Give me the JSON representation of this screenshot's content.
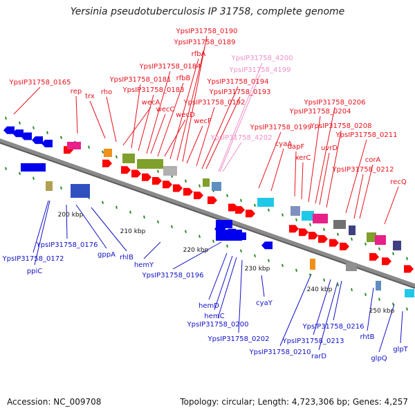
{
  "title": "Yersinia pseudotuberculosis IP 31758, complete genome",
  "footer": {
    "accession": "Accession: NC_009708",
    "topology": "Topology: circular; Length: 4,723,306 bp; Genes: 4,257"
  },
  "colors": {
    "forward_label": "#e8101a",
    "reverse_label": "#1010c8",
    "tentative_label": "#f08fc8",
    "backbone": "#8a8a8a",
    "forward_arrow": "#ff0000",
    "reverse_arrow": "#0000ee",
    "tick": "#2a8a2a"
  },
  "kbp_ticks": [
    "200 kbp",
    "210 kbp",
    "220 kbp",
    "230 kbp",
    "240 kbp",
    "250 kbp"
  ],
  "forward_labels": [
    "YpsIP31758_0165",
    "rep",
    "trx",
    "rho",
    "wecA",
    "YpsIP31758_0181",
    "YpsIP31758_0183",
    "YpsIP31758_0184",
    "wecC",
    "rfbB",
    "wecD",
    "rfbA",
    "YpsIP31758_0189",
    "YpsIP31758_0190",
    "wecF",
    "YpsIP31758_0192",
    "YpsIP31758_0193",
    "YpsIP31758_0194",
    "YpsIP31758_0199",
    "cyaA",
    "dapF",
    "xerC",
    "uvrD",
    "YpsIP31758_0204",
    "YpsIP31758_0206",
    "YpsIP31758_0208",
    "YpsIP31758_0211",
    "corA",
    "YpsIP31758_0212",
    "recQ"
  ],
  "tentative_labels": [
    "YpsIP31758_4200",
    "YpsIP31758_4199",
    "YpsIP31758_4202"
  ],
  "reverse_labels": [
    "YpsIP31758_0172",
    "ppiC",
    "YpsIP31758_0176",
    "gppA",
    "rhlB",
    "hemY",
    "YpsIP31758_0196",
    "hemD",
    "hemC",
    "YpsIP31758_0200",
    "YpsIP31758_0202",
    "cyaY",
    "YpsIP31758_0210",
    "YpsIP31758_0213",
    "rarD",
    "YpsIP31758_0216",
    "rhtB",
    "glpQ",
    "glpT"
  ]
}
